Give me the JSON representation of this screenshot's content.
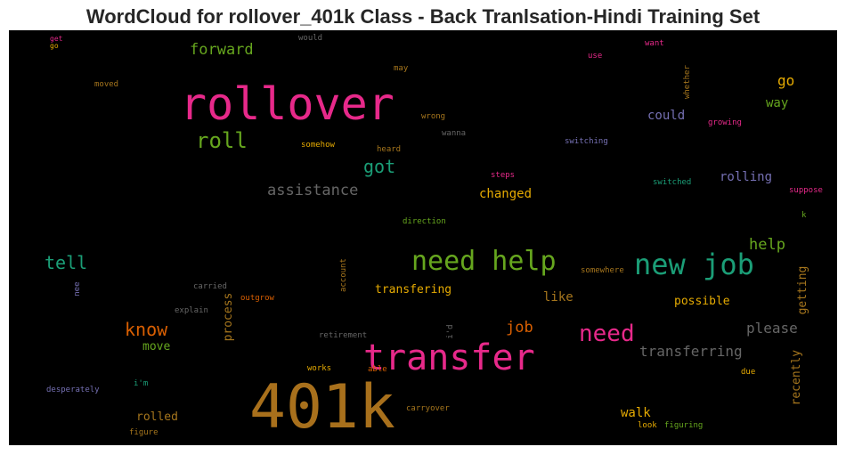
{
  "chart_data": {
    "type": "wordcloud",
    "title": "WordCloud for rollover_401k Class - Back Tranlsation-Hindi Training Set",
    "background": "#000000",
    "words": [
      {
        "text": "401k",
        "color": "#a8701c"
      },
      {
        "text": "rollover",
        "color": "#e7298a"
      },
      {
        "text": "transfer",
        "color": "#e7298a"
      },
      {
        "text": "new job",
        "color": "#1b9e77"
      },
      {
        "text": "need help",
        "color": "#66a61e"
      },
      {
        "text": "need",
        "color": "#e7298a"
      },
      {
        "text": "roll",
        "color": "#66a61e"
      },
      {
        "text": "got",
        "color": "#1b9e77"
      },
      {
        "text": "tell",
        "color": "#1b9e77"
      },
      {
        "text": "know",
        "color": "#d95f02"
      },
      {
        "text": "forward",
        "color": "#66a61e"
      },
      {
        "text": "assistance",
        "color": "#666666"
      },
      {
        "text": "help",
        "color": "#66a61e"
      },
      {
        "text": "please",
        "color": "#666666"
      },
      {
        "text": "transferring",
        "color": "#666666"
      },
      {
        "text": "job",
        "color": "#d95f02"
      },
      {
        "text": "go",
        "color": "#e6ab02"
      },
      {
        "text": "way",
        "color": "#66a61e"
      },
      {
        "text": "could",
        "color": "#7570b3"
      },
      {
        "text": "rolling",
        "color": "#7570b3"
      },
      {
        "text": "changed",
        "color": "#e6ab02"
      },
      {
        "text": "transfering",
        "color": "#e6ab02"
      },
      {
        "text": "like",
        "color": "#a6761d"
      },
      {
        "text": "possible",
        "color": "#e6ab02"
      },
      {
        "text": "getting",
        "color": "#a6761d"
      },
      {
        "text": "recently",
        "color": "#a6761d"
      },
      {
        "text": "process",
        "color": "#a6761d"
      },
      {
        "text": "walk",
        "color": "#e6ab02"
      },
      {
        "text": "move",
        "color": "#66a61e"
      },
      {
        "text": "rolled",
        "color": "#a6761d"
      },
      {
        "text": "wrong",
        "color": "#a6761d"
      },
      {
        "text": "wanna",
        "color": "#666666"
      },
      {
        "text": "somehow",
        "color": "#e6ab02"
      },
      {
        "text": "heard",
        "color": "#a6761d"
      },
      {
        "text": "switching",
        "color": "#7570b3"
      },
      {
        "text": "growing",
        "color": "#e7298a"
      },
      {
        "text": "steps",
        "color": "#e7298a"
      },
      {
        "text": "switched",
        "color": "#1b9e77"
      },
      {
        "text": "suppose",
        "color": "#e7298a"
      },
      {
        "text": "k",
        "color": "#66a61e"
      },
      {
        "text": "direction",
        "color": "#66a61e"
      },
      {
        "text": "somewhere",
        "color": "#a6761d"
      },
      {
        "text": "carried",
        "color": "#666666"
      },
      {
        "text": "outgrow",
        "color": "#d95f02"
      },
      {
        "text": "explain",
        "color": "#666666"
      },
      {
        "text": "account",
        "color": "#a6761d"
      },
      {
        "text": "i'd",
        "color": "#666666"
      },
      {
        "text": "retirement",
        "color": "#666666"
      },
      {
        "text": "works",
        "color": "#e6ab02"
      },
      {
        "text": "able",
        "color": "#d95f02"
      },
      {
        "text": "i'm",
        "color": "#1b9e77"
      },
      {
        "text": "desperately",
        "color": "#7570b3"
      },
      {
        "text": "due",
        "color": "#e6ab02"
      },
      {
        "text": "carryover",
        "color": "#a6761d"
      },
      {
        "text": "look",
        "color": "#e6ab02"
      },
      {
        "text": "figuring",
        "color": "#66a61e"
      },
      {
        "text": "figure",
        "color": "#a6761d"
      },
      {
        "text": "nee",
        "color": "#7570b3"
      },
      {
        "text": "would",
        "color": "#666666"
      },
      {
        "text": "may",
        "color": "#a6761d"
      },
      {
        "text": "moved",
        "color": "#a6761d"
      },
      {
        "text": "use",
        "color": "#e7298a"
      },
      {
        "text": "want",
        "color": "#e7298a"
      },
      {
        "text": "whether",
        "color": "#a6761d"
      },
      {
        "text": "get",
        "color": "#e7298a"
      },
      {
        "text": "go",
        "color": "#e6ab02"
      }
    ]
  }
}
